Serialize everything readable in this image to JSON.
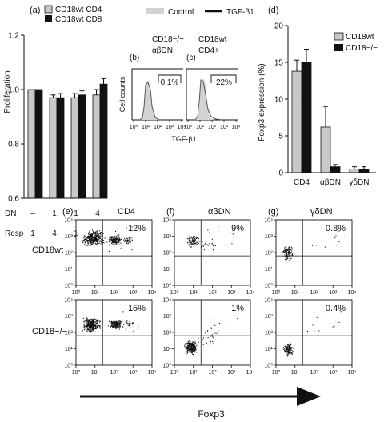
{
  "colors": {
    "wt": "#c8c8c8",
    "ko": "#111111",
    "histFill": "#d2d2d2",
    "histLine": "#555555",
    "dots": "#111111"
  },
  "panel_a": {
    "letter": "(a)",
    "ylabel": "Proliferation",
    "yticks": [
      "0.6",
      "0.8",
      "1.0",
      "1.2"
    ],
    "row_labels": {
      "dn": "DN",
      "resp": "Resp"
    },
    "dn": [
      "–",
      "1",
      "1",
      "4"
    ],
    "resp": [
      "1",
      "4",
      "1",
      "1"
    ],
    "legend": [
      {
        "label": "CD18wt CD4",
        "key": "wt"
      },
      {
        "label": "CD18wt CD8",
        "key": "ko"
      }
    ]
  },
  "panel_b": {
    "letter": "(b)",
    "line1": "CD18−/−",
    "line2": "αβDN",
    "percent": "0.1%"
  },
  "panel_c": {
    "letter": "(c)",
    "line1": "CD18wt",
    "line2": "CD4+",
    "percent": "22%"
  },
  "hist_legend": {
    "control": "Control",
    "tgf": "TGF-β1"
  },
  "hist_axes": {
    "ylabel": "Cell counts",
    "xlabel": "TGF-β1",
    "xticks": [
      "10⁰",
      "10¹",
      "10²",
      "10³",
      "10⁴"
    ]
  },
  "panel_d": {
    "letter": "(d)",
    "ylabel": "Foxp3 expression (%)",
    "yticks": [
      "0",
      "5",
      "10",
      "15",
      "20"
    ],
    "categories": [
      "CD4",
      "αβDN",
      "γδDN"
    ],
    "legend": [
      {
        "label": "CD18wt",
        "key": "wt"
      },
      {
        "label": "CD18−/−",
        "key": "ko"
      }
    ],
    "star": "*"
  },
  "dot_panels": {
    "columns": [
      {
        "letter": "(e)",
        "title": "CD4"
      },
      {
        "letter": "(f)",
        "title": "αβDN"
      },
      {
        "letter": "(g)",
        "title": "γδDN"
      }
    ],
    "rows": [
      {
        "label": "CD18wt"
      },
      {
        "label": "CD18−/−"
      }
    ],
    "percents": [
      [
        "12%",
        "9%",
        "0.8%"
      ],
      [
        "15%",
        "1%",
        "0.4%"
      ]
    ],
    "ticks": [
      "10⁰",
      "10¹",
      "10²",
      "10³",
      "10⁴"
    ],
    "xlabel": "Foxp3"
  },
  "chart_data": [
    {
      "type": "bar",
      "panel": "a",
      "categories": [
        "DN – / Resp 1",
        "DN 1 / Resp 4",
        "DN 1 / Resp 1",
        "DN 4 / Resp 1"
      ],
      "series": [
        {
          "name": "CD18wt CD4",
          "values": [
            1.0,
            0.97,
            0.97,
            0.98
          ],
          "errors": [
            0.0,
            0.01,
            0.015,
            0.02
          ]
        },
        {
          "name": "CD18wt CD8",
          "values": [
            1.0,
            0.97,
            0.98,
            1.02
          ],
          "errors": [
            0.0,
            0.015,
            0.015,
            0.02
          ]
        }
      ],
      "ylabel": "Proliferation",
      "ylim": [
        0.6,
        1.2
      ]
    },
    {
      "type": "bar",
      "panel": "d",
      "categories": [
        "CD4",
        "αβDN",
        "γδDN"
      ],
      "series": [
        {
          "name": "CD18wt",
          "values": [
            13.8,
            6.2,
            0.5
          ],
          "errors": [
            1.5,
            2.8,
            0.3
          ]
        },
        {
          "name": "CD18−/−",
          "values": [
            15.0,
            0.8,
            0.5
          ],
          "errors": [
            1.8,
            0.3,
            0.3
          ]
        }
      ],
      "ylabel": "Foxp3 expression (%)",
      "ylim": [
        0,
        20
      ]
    }
  ]
}
